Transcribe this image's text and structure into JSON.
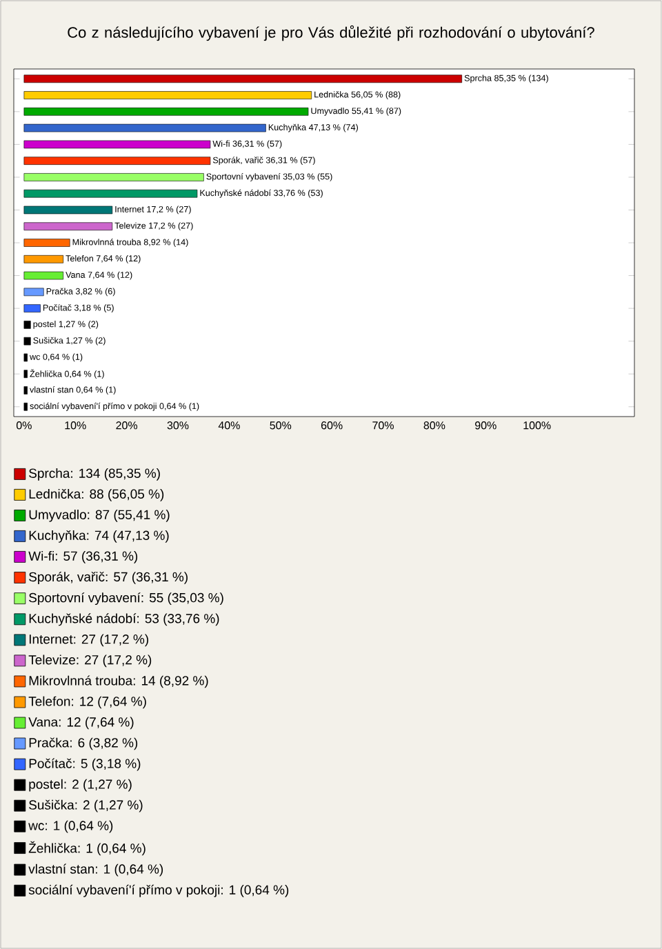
{
  "chart_data": {
    "type": "bar",
    "orientation": "horizontal",
    "title": "Co z následujícího vybavení je pro Vás důležité při rozhodování o ubytování?",
    "categories": [
      null,
      null,
      null,
      null,
      null,
      null,
      null,
      null,
      null,
      null,
      null,
      null,
      null,
      null,
      null,
      null,
      null,
      null,
      null,
      null,
      null
    ],
    "series": [
      {
        "name": "Sprcha: 134 (85,35 %)",
        "color": "#cc0000",
        "values": [
          85.35,
          null,
          null,
          null,
          null,
          null,
          null,
          null,
          null,
          null,
          null,
          null,
          null,
          null,
          null,
          null,
          null,
          null,
          null,
          null,
          null
        ],
        "value_labels": [
          "Sprcha 85,35 % (134)",
          null,
          null,
          null,
          null,
          null,
          null,
          null,
          null,
          null,
          null,
          null,
          null,
          null,
          null,
          null,
          null,
          null,
          null,
          null,
          null
        ]
      },
      {
        "name": "Lednička: 88 (56,05 %)",
        "color": "#ffcc00",
        "values": [
          null,
          56.05,
          null,
          null,
          null,
          null,
          null,
          null,
          null,
          null,
          null,
          null,
          null,
          null,
          null,
          null,
          null,
          null,
          null,
          null,
          null
        ],
        "value_labels": [
          null,
          "Lednička 56,05 % (88)",
          null,
          null,
          null,
          null,
          null,
          null,
          null,
          null,
          null,
          null,
          null,
          null,
          null,
          null,
          null,
          null,
          null,
          null,
          null
        ]
      },
      {
        "name": "Umyvadlo: 87 (55,41 %)",
        "color": "#00aa00",
        "values": [
          null,
          null,
          55.41,
          null,
          null,
          null,
          null,
          null,
          null,
          null,
          null,
          null,
          null,
          null,
          null,
          null,
          null,
          null,
          null,
          null,
          null
        ],
        "value_labels": [
          null,
          null,
          "Umyvadlo 55,41 % (87)",
          null,
          null,
          null,
          null,
          null,
          null,
          null,
          null,
          null,
          null,
          null,
          null,
          null,
          null,
          null,
          null,
          null,
          null
        ]
      },
      {
        "name": "Kuchyňka: 74 (47,13 %)",
        "color": "#3366cc",
        "values": [
          null,
          null,
          null,
          47.13,
          null,
          null,
          null,
          null,
          null,
          null,
          null,
          null,
          null,
          null,
          null,
          null,
          null,
          null,
          null,
          null,
          null
        ],
        "value_labels": [
          null,
          null,
          null,
          "Kuchyňka 47,13 % (74)",
          null,
          null,
          null,
          null,
          null,
          null,
          null,
          null,
          null,
          null,
          null,
          null,
          null,
          null,
          null,
          null,
          null
        ]
      },
      {
        "name": "Wi-fi: 57 (36,31 %)",
        "color": "#cc00cc",
        "values": [
          null,
          null,
          null,
          null,
          36.31,
          null,
          null,
          null,
          null,
          null,
          null,
          null,
          null,
          null,
          null,
          null,
          null,
          null,
          null,
          null,
          null
        ],
        "value_labels": [
          null,
          null,
          null,
          null,
          "Wi-fi 36,31 % (57)",
          null,
          null,
          null,
          null,
          null,
          null,
          null,
          null,
          null,
          null,
          null,
          null,
          null,
          null,
          null,
          null
        ]
      },
      {
        "name": "Sporák, vařič: 57 (36,31 %)",
        "color": "#ff3300",
        "values": [
          null,
          null,
          null,
          null,
          null,
          36.31,
          null,
          null,
          null,
          null,
          null,
          null,
          null,
          null,
          null,
          null,
          null,
          null,
          null,
          null,
          null
        ],
        "value_labels": [
          null,
          null,
          null,
          null,
          null,
          "Sporák, vařič 36,31 % (57)",
          null,
          null,
          null,
          null,
          null,
          null,
          null,
          null,
          null,
          null,
          null,
          null,
          null,
          null,
          null
        ]
      },
      {
        "name": "Sportovní vybavení: 55 (35,03 %)",
        "color": "#99ff66",
        "values": [
          null,
          null,
          null,
          null,
          null,
          null,
          35.03,
          null,
          null,
          null,
          null,
          null,
          null,
          null,
          null,
          null,
          null,
          null,
          null,
          null,
          null
        ],
        "value_labels": [
          null,
          null,
          null,
          null,
          null,
          null,
          "Sportovní vybavení 35,03 % (55)",
          null,
          null,
          null,
          null,
          null,
          null,
          null,
          null,
          null,
          null,
          null,
          null,
          null,
          null
        ]
      },
      {
        "name": "Kuchyňské nádobí: 53 (33,76 %)",
        "color": "#009966",
        "values": [
          null,
          null,
          null,
          null,
          null,
          null,
          null,
          33.76,
          null,
          null,
          null,
          null,
          null,
          null,
          null,
          null,
          null,
          null,
          null,
          null,
          null
        ],
        "value_labels": [
          null,
          null,
          null,
          null,
          null,
          null,
          null,
          "Kuchyňské nádobí 33,76 % (53)",
          null,
          null,
          null,
          null,
          null,
          null,
          null,
          null,
          null,
          null,
          null,
          null,
          null
        ]
      },
      {
        "name": "Internet: 27 (17,2 %)",
        "color": "#007777",
        "values": [
          null,
          null,
          null,
          null,
          null,
          null,
          null,
          null,
          17.2,
          null,
          null,
          null,
          null,
          null,
          null,
          null,
          null,
          null,
          null,
          null,
          null
        ],
        "value_labels": [
          null,
          null,
          null,
          null,
          null,
          null,
          null,
          null,
          "Internet 17,2 % (27)",
          null,
          null,
          null,
          null,
          null,
          null,
          null,
          null,
          null,
          null,
          null,
          null
        ]
      },
      {
        "name": "Televize: 27 (17,2 %)",
        "color": "#cc66cc",
        "values": [
          null,
          null,
          null,
          null,
          null,
          null,
          null,
          null,
          null,
          17.2,
          null,
          null,
          null,
          null,
          null,
          null,
          null,
          null,
          null,
          null,
          null
        ],
        "value_labels": [
          null,
          null,
          null,
          null,
          null,
          null,
          null,
          null,
          null,
          "Televize 17,2 % (27)",
          null,
          null,
          null,
          null,
          null,
          null,
          null,
          null,
          null,
          null,
          null
        ]
      },
      {
        "name": "Mikrovlnná trouba: 14 (8,92 %)",
        "color": "#ff6600",
        "values": [
          null,
          null,
          null,
          null,
          null,
          null,
          null,
          null,
          null,
          null,
          8.92,
          null,
          null,
          null,
          null,
          null,
          null,
          null,
          null,
          null,
          null
        ],
        "value_labels": [
          null,
          null,
          null,
          null,
          null,
          null,
          null,
          null,
          null,
          null,
          "Mikrovlnná trouba 8,92 % (14)",
          null,
          null,
          null,
          null,
          null,
          null,
          null,
          null,
          null,
          null
        ]
      },
      {
        "name": "Telefon: 12 (7,64 %)",
        "color": "#ff9900",
        "values": [
          null,
          null,
          null,
          null,
          null,
          null,
          null,
          null,
          null,
          null,
          null,
          7.64,
          null,
          null,
          null,
          null,
          null,
          null,
          null,
          null,
          null
        ],
        "value_labels": [
          null,
          null,
          null,
          null,
          null,
          null,
          null,
          null,
          null,
          null,
          null,
          "Telefon 7,64 % (12)",
          null,
          null,
          null,
          null,
          null,
          null,
          null,
          null,
          null
        ]
      },
      {
        "name": "Vana: 12 (7,64 %)",
        "color": "#66ee33",
        "values": [
          null,
          null,
          null,
          null,
          null,
          null,
          null,
          null,
          null,
          null,
          null,
          null,
          7.64,
          null,
          null,
          null,
          null,
          null,
          null,
          null,
          null
        ],
        "value_labels": [
          null,
          null,
          null,
          null,
          null,
          null,
          null,
          null,
          null,
          null,
          null,
          null,
          "Vana 7,64 % (12)",
          null,
          null,
          null,
          null,
          null,
          null,
          null,
          null
        ]
      },
      {
        "name": "Pračka: 6 (3,82 %)",
        "color": "#6699ff",
        "values": [
          null,
          null,
          null,
          null,
          null,
          null,
          null,
          null,
          null,
          null,
          null,
          null,
          null,
          3.82,
          null,
          null,
          null,
          null,
          null,
          null,
          null
        ],
        "value_labels": [
          null,
          null,
          null,
          null,
          null,
          null,
          null,
          null,
          null,
          null,
          null,
          null,
          null,
          "Pračka 3,82 % (6)",
          null,
          null,
          null,
          null,
          null,
          null,
          null
        ]
      },
      {
        "name": "Počítač: 5 (3,18 %)",
        "color": "#3366ff",
        "values": [
          null,
          null,
          null,
          null,
          null,
          null,
          null,
          null,
          null,
          null,
          null,
          null,
          null,
          null,
          3.18,
          null,
          null,
          null,
          null,
          null,
          null
        ],
        "value_labels": [
          null,
          null,
          null,
          null,
          null,
          null,
          null,
          null,
          null,
          null,
          null,
          null,
          null,
          null,
          "Počítač 3,18 % (5)",
          null,
          null,
          null,
          null,
          null,
          null
        ]
      },
      {
        "name": "postel: 2 (1,27 %)",
        "color": "#000000",
        "values": [
          null,
          null,
          null,
          null,
          null,
          null,
          null,
          null,
          null,
          null,
          null,
          null,
          null,
          null,
          null,
          1.27,
          null,
          null,
          null,
          null,
          null
        ],
        "value_labels": [
          null,
          null,
          null,
          null,
          null,
          null,
          null,
          null,
          null,
          null,
          null,
          null,
          null,
          null,
          null,
          "postel 1,27 % (2)",
          null,
          null,
          null,
          null,
          null
        ]
      },
      {
        "name": "Sušička: 2 (1,27 %)",
        "color": "#000000",
        "values": [
          null,
          null,
          null,
          null,
          null,
          null,
          null,
          null,
          null,
          null,
          null,
          null,
          null,
          null,
          null,
          null,
          1.27,
          null,
          null,
          null,
          null
        ],
        "value_labels": [
          null,
          null,
          null,
          null,
          null,
          null,
          null,
          null,
          null,
          null,
          null,
          null,
          null,
          null,
          null,
          null,
          "Sušička 1,27 % (2)",
          null,
          null,
          null,
          null
        ]
      },
      {
        "name": "wc: 1 (0,64 %)",
        "color": "#000000",
        "values": [
          null,
          null,
          null,
          null,
          null,
          null,
          null,
          null,
          null,
          null,
          null,
          null,
          null,
          null,
          null,
          null,
          null,
          0.64,
          null,
          null,
          null
        ],
        "value_labels": [
          null,
          null,
          null,
          null,
          null,
          null,
          null,
          null,
          null,
          null,
          null,
          null,
          null,
          null,
          null,
          null,
          null,
          "wc 0,64 % (1)",
          null,
          null,
          null
        ]
      },
      {
        "name": "Žehlička: 1 (0,64 %)",
        "color": "#000000",
        "values": [
          null,
          null,
          null,
          null,
          null,
          null,
          null,
          null,
          null,
          null,
          null,
          null,
          null,
          null,
          null,
          null,
          null,
          null,
          0.64,
          null,
          null
        ],
        "value_labels": [
          null,
          null,
          null,
          null,
          null,
          null,
          null,
          null,
          null,
          null,
          null,
          null,
          null,
          null,
          null,
          null,
          null,
          null,
          "Žehlička 0,64 % (1)",
          null,
          null
        ]
      },
      {
        "name": "vlastní stan: 1 (0,64 %)",
        "color": "#000000",
        "values": [
          null,
          null,
          null,
          null,
          null,
          null,
          null,
          null,
          null,
          null,
          null,
          null,
          null,
          null,
          null,
          null,
          null,
          null,
          null,
          0.64,
          null
        ],
        "value_labels": [
          null,
          null,
          null,
          null,
          null,
          null,
          null,
          null,
          null,
          null,
          null,
          null,
          null,
          null,
          null,
          null,
          null,
          null,
          null,
          "vlastní stan 0,64 % (1)",
          null
        ]
      },
      {
        "name": "sociální vybavení'í přímo v pokoji: 1 (0,64 %)",
        "color": "#000000",
        "values": [
          null,
          null,
          null,
          null,
          null,
          null,
          null,
          null,
          null,
          null,
          null,
          null,
          null,
          null,
          null,
          null,
          null,
          null,
          null,
          null,
          0.64
        ],
        "value_labels": [
          null,
          null,
          null,
          null,
          null,
          null,
          null,
          null,
          null,
          null,
          null,
          null,
          null,
          null,
          null,
          null,
          null,
          null,
          null,
          null,
          "sociální vybavení'í přímo v pokoji 0,64 % (1)"
        ]
      }
    ],
    "xlim": [
      -2,
      119
    ],
    "xticks": [
      {
        "value": 0,
        "label": "0%"
      },
      {
        "value": 10,
        "label": "10%"
      },
      {
        "value": 20,
        "label": "20%"
      },
      {
        "value": 30,
        "label": "30%"
      },
      {
        "value": 40,
        "label": "40%"
      },
      {
        "value": 50,
        "label": "50%"
      },
      {
        "value": 60,
        "label": "60%"
      },
      {
        "value": 70,
        "label": "70%"
      },
      {
        "value": 80,
        "label": "80%"
      },
      {
        "value": 90,
        "label": "90%"
      },
      {
        "value": 100,
        "label": "100%"
      }
    ],
    "tick_labels": "x",
    "stacked": true,
    "legend": "bottom"
  }
}
